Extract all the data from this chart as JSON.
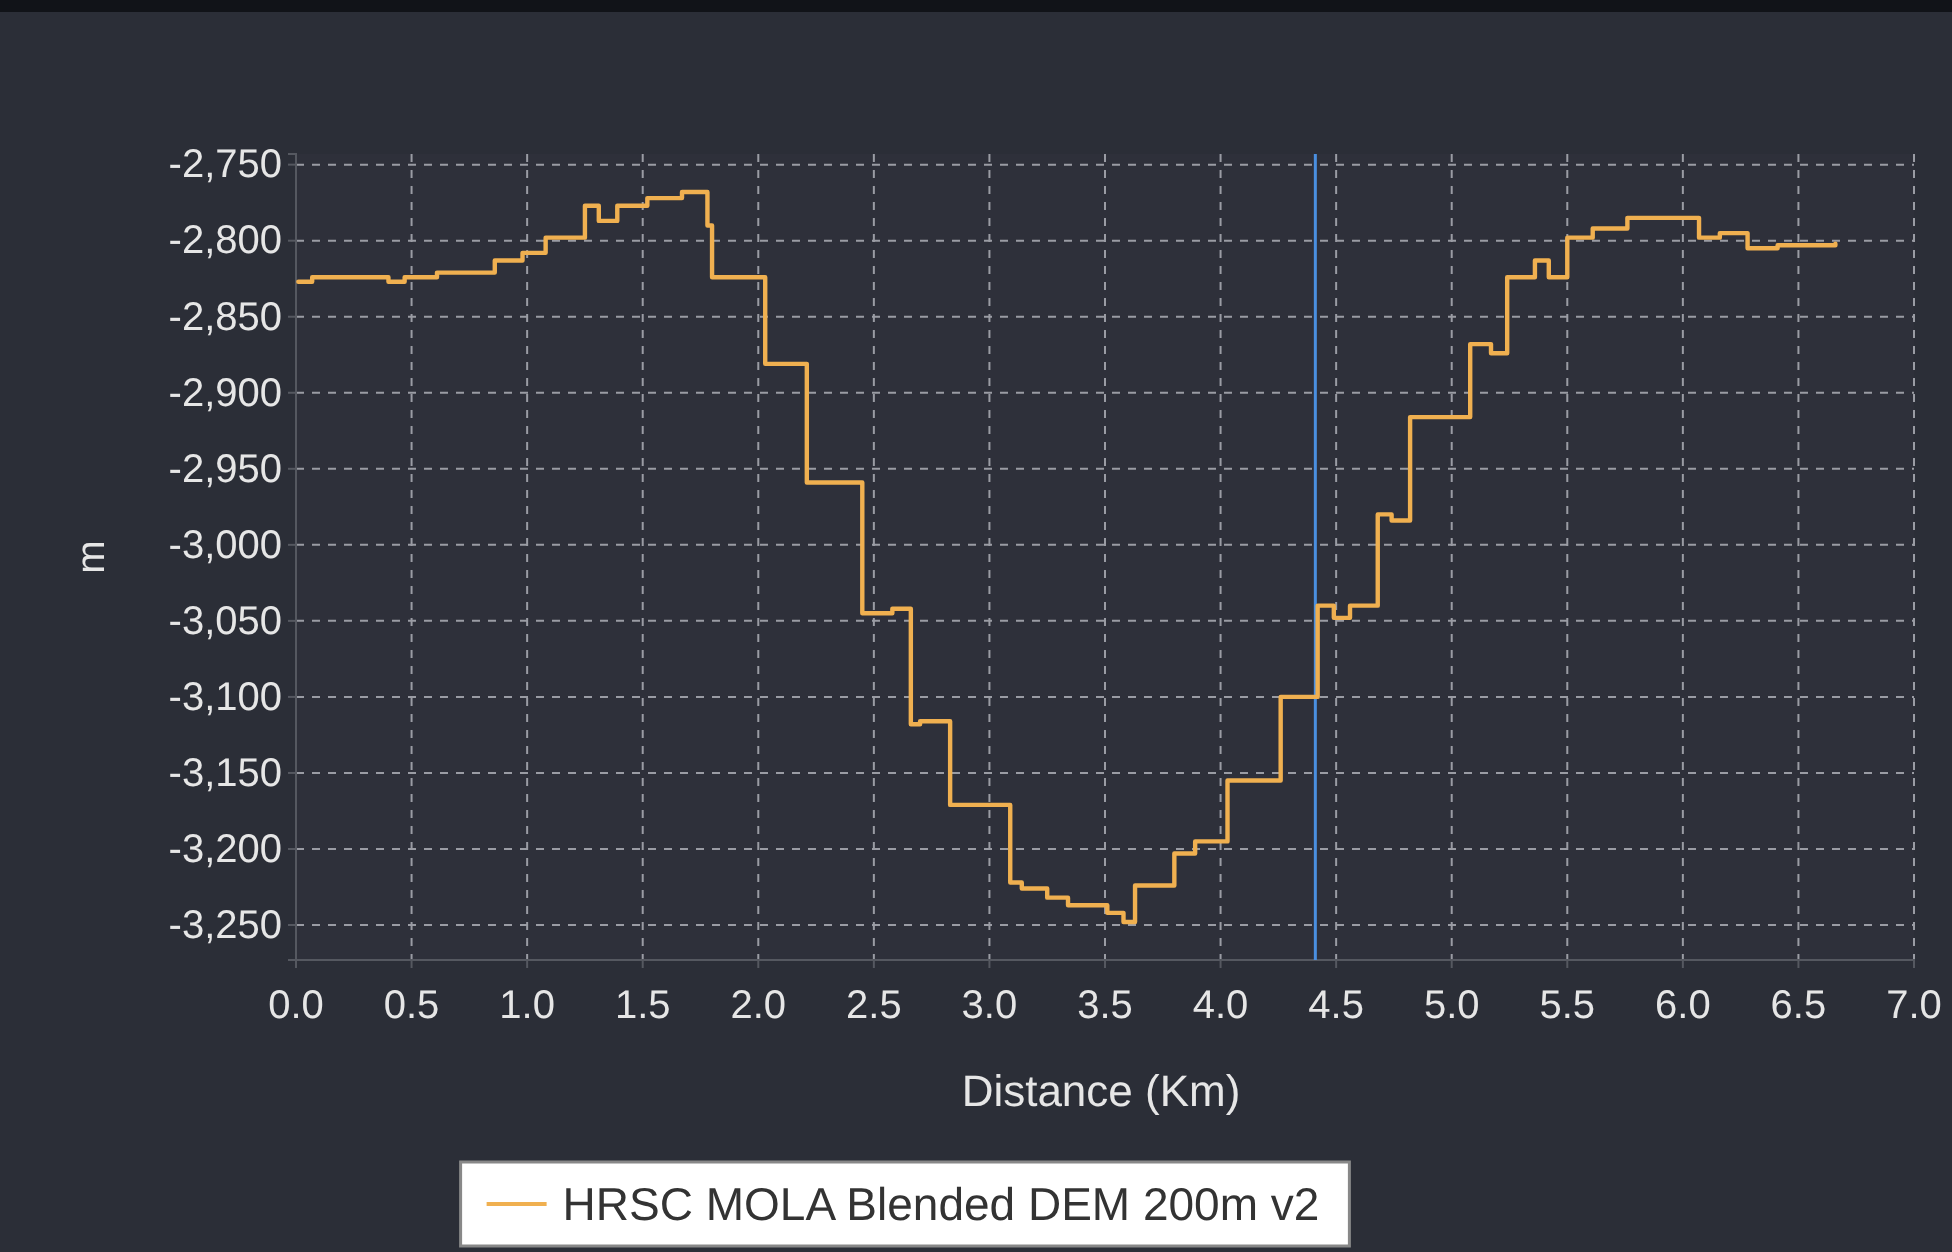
{
  "chart_data": {
    "type": "step",
    "xlabel": "Distance (Km)",
    "ylabel": "m",
    "xlim": [
      0,
      7
    ],
    "ylim": [
      -3273,
      -2743
    ],
    "xticks": [
      {
        "value": 0,
        "label": "0.0"
      },
      {
        "value": 0.5,
        "label": "0.5"
      },
      {
        "value": 1,
        "label": "1.0"
      },
      {
        "value": 1.5,
        "label": "1.5"
      },
      {
        "value": 2,
        "label": "2.0"
      },
      {
        "value": 2.5,
        "label": "2.5"
      },
      {
        "value": 3,
        "label": "3.0"
      },
      {
        "value": 3.5,
        "label": "3.5"
      },
      {
        "value": 4,
        "label": "4.0"
      },
      {
        "value": 4.5,
        "label": "4.5"
      },
      {
        "value": 5,
        "label": "5.0"
      },
      {
        "value": 5.5,
        "label": "5.5"
      },
      {
        "value": 6,
        "label": "6.0"
      },
      {
        "value": 6.5,
        "label": "6.5"
      },
      {
        "value": 7,
        "label": "7.0"
      }
    ],
    "yticks": [
      {
        "value": -2750,
        "label": "-2,750"
      },
      {
        "value": -2800,
        "label": "-2,800"
      },
      {
        "value": -2850,
        "label": "-2,850"
      },
      {
        "value": -2900,
        "label": "-2,900"
      },
      {
        "value": -2950,
        "label": "-2,950"
      },
      {
        "value": -3000,
        "label": "-3,000"
      },
      {
        "value": -3050,
        "label": "-3,050"
      },
      {
        "value": -3100,
        "label": "-3,100"
      },
      {
        "value": -3150,
        "label": "-3,150"
      },
      {
        "value": -3200,
        "label": "-3,200"
      },
      {
        "value": -3250,
        "label": "-3,250"
      }
    ],
    "grid": true,
    "legend": "bottom",
    "line_style": "solid",
    "marker": "none",
    "ref_lines": [
      {
        "axis": "x",
        "value": 4.41,
        "color": "#4a8fe0"
      }
    ],
    "series": [
      {
        "name": "HRSC MOLA Blended DEM 200m v2",
        "color": "#f0b050",
        "x": [
          0.01,
          0.07,
          0.4,
          0.47,
          0.61,
          0.86,
          0.98,
          1.08,
          1.25,
          1.31,
          1.39,
          1.52,
          1.67,
          1.78,
          1.8,
          2.03,
          2.21,
          2.45,
          2.58,
          2.66,
          2.7,
          2.83,
          3.09,
          3.14,
          3.25,
          3.34,
          3.51,
          3.58,
          3.63,
          3.8,
          3.89,
          4.03,
          4.26,
          4.42,
          4.49,
          4.56,
          4.68,
          4.74,
          4.82,
          5.08,
          5.17,
          5.24,
          5.36,
          5.42,
          5.5,
          5.61,
          5.76,
          5.9,
          6.07,
          6.16,
          6.28,
          6.41,
          6.66
        ],
        "values": [
          -2827,
          -2824,
          -2827,
          -2824,
          -2821,
          -2813,
          -2808,
          -2798,
          -2777,
          -2787,
          -2777,
          -2772,
          -2768,
          -2790,
          -2824,
          -2881,
          -2959,
          -3045,
          -3042,
          -3118,
          -3116,
          -3171,
          -3222,
          -3226,
          -3232,
          -3237,
          -3242,
          -3248,
          -3224,
          -3203,
          -3195,
          -3155,
          -3100,
          -3040,
          -3048,
          -3040,
          -2980,
          -2984,
          -2916,
          -2868,
          -2874,
          -2824,
          -2813,
          -2824,
          -2798,
          -2792,
          -2785,
          -2785,
          -2798,
          -2795,
          -2805,
          -2803,
          -2802
        ]
      }
    ]
  }
}
